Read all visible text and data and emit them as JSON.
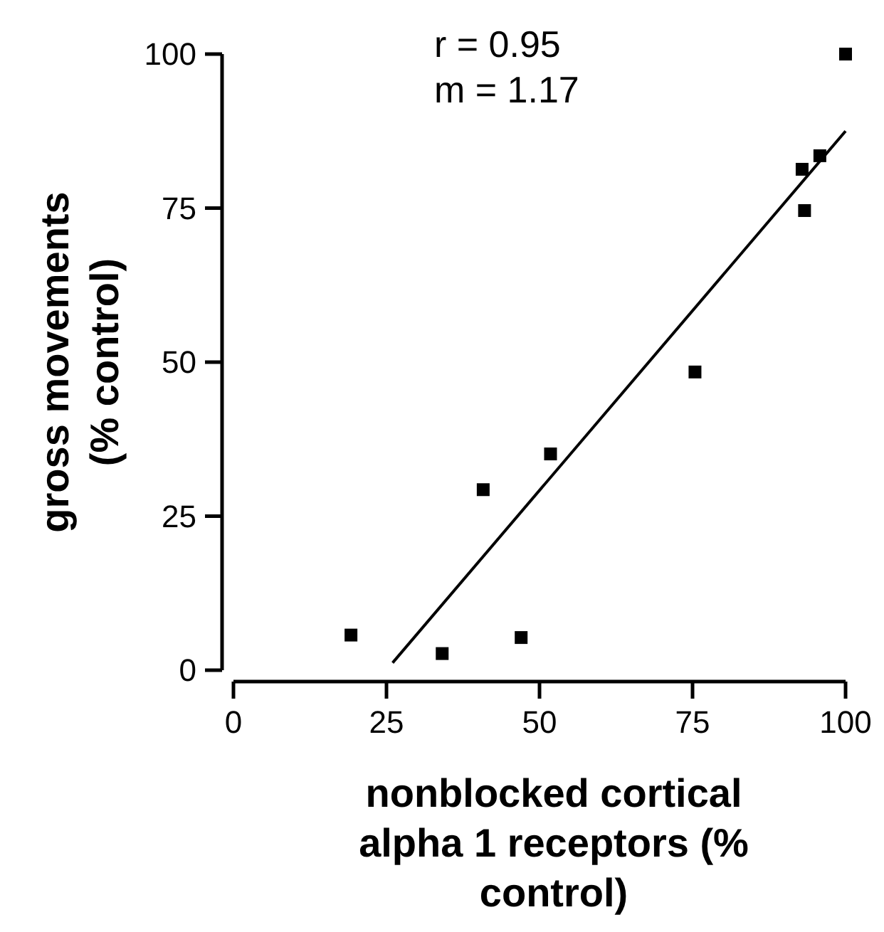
{
  "chart_data": {
    "type": "scatter",
    "xlabel": "nonblocked cortical alpha 1 receptors (% control)",
    "ylabel": "gross movements (% control)",
    "annotations": [
      "r = 0.95",
      "m = 1.17"
    ],
    "xlim": [
      0,
      100
    ],
    "ylim": [
      0,
      100
    ],
    "xticks": [
      0,
      25,
      50,
      75,
      100
    ],
    "yticks": [
      0,
      25,
      50,
      75,
      100
    ],
    "marker": "square",
    "series": [
      {
        "color": "#000000",
        "x": [
          19.2,
          34.1,
          47.0,
          40.8,
          51.8,
          75.4,
          93.3,
          92.9,
          95.8,
          100
        ],
        "values": [
          5.7,
          2.7,
          5.3,
          29.3,
          35.1,
          48.4,
          74.6,
          81.3,
          83.5,
          100
        ]
      },
      {
        "type": "line",
        "color": "#000000",
        "marker": "none",
        "line_style": "solid",
        "x": [
          26.0,
          100
        ],
        "values": [
          1.2,
          87.5
        ]
      }
    ]
  }
}
